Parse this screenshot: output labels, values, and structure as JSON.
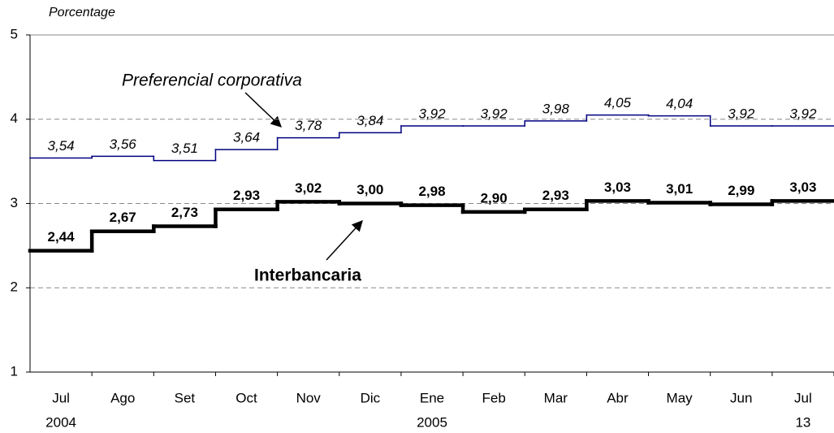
{
  "chart_data": {
    "type": "step",
    "y_label": "Porcentage",
    "categories": [
      "Jul",
      "Ago",
      "Set",
      "Oct",
      "Nov",
      "Dic",
      "Ene",
      "Feb",
      "Mar",
      "Abr",
      "May",
      "Jun",
      "Jul"
    ],
    "category_years": [
      "2004",
      null,
      null,
      null,
      null,
      null,
      "2005",
      null,
      null,
      null,
      null,
      null,
      "13"
    ],
    "series": [
      {
        "name": "Preferencial corporativa",
        "color": "#000080",
        "values": [
          3.54,
          3.56,
          3.51,
          3.64,
          3.78,
          3.84,
          3.92,
          3.92,
          3.98,
          4.05,
          4.04,
          3.92,
          3.92
        ],
        "value_labels": [
          "3,54",
          "3,56",
          "3,51",
          "3,64",
          "3,78",
          "3,84",
          "3,92",
          "3,92",
          "3,98",
          "4,05",
          "4,04",
          "3,92",
          "3,92"
        ]
      },
      {
        "name": "Interbancaria",
        "color": "#000000",
        "values": [
          2.44,
          2.67,
          2.73,
          2.93,
          3.02,
          3.0,
          2.98,
          2.9,
          2.93,
          3.03,
          3.01,
          2.99,
          3.03
        ],
        "value_labels": [
          "2,44",
          "2,67",
          "2,73",
          "2,93",
          "3,02",
          "3,00",
          "2,98",
          "2,90",
          "2,93",
          "3,03",
          "3,01",
          "2,99",
          "3,03"
        ]
      }
    ],
    "ylim": [
      1,
      5
    ],
    "yticks": [
      1,
      2,
      3,
      4,
      5
    ],
    "grid": true
  }
}
